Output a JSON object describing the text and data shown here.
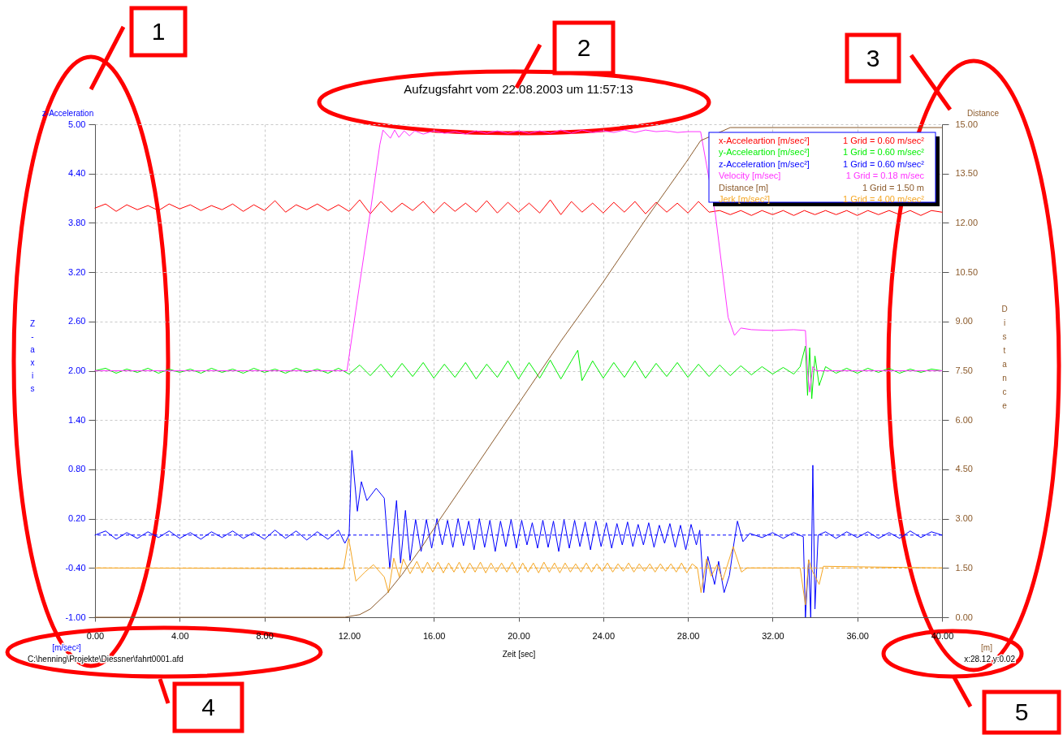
{
  "chart_data": {
    "type": "line",
    "title": "Aufzugsfahrt vom 22.08.2003 um 11:57:13",
    "xlabel": "Zeit   [sec]",
    "ylabel": "z-Acceleration",
    "y2label": "Distance",
    "xlim": [
      0,
      40
    ],
    "xticks": [
      {
        "value": 0,
        "label": "0.00"
      },
      {
        "value": 4,
        "label": "4.00"
      },
      {
        "value": 8,
        "label": "8.00"
      },
      {
        "value": 12,
        "label": "12.00"
      },
      {
        "value": 16,
        "label": "16.00"
      },
      {
        "value": 20,
        "label": "20.00"
      },
      {
        "value": 24,
        "label": "24.00"
      },
      {
        "value": 28,
        "label": "28.00"
      },
      {
        "value": 32,
        "label": "32.00"
      },
      {
        "value": 36,
        "label": "36.00"
      },
      {
        "value": 40,
        "label": "40.00"
      }
    ],
    "ylim": [
      -1,
      5
    ],
    "yticks": [
      {
        "value": -1,
        "label": "-1.00"
      },
      {
        "value": -0.4,
        "label": "-0.40"
      },
      {
        "value": 0.2,
        "label": "0.20"
      },
      {
        "value": 0.8,
        "label": "0.80"
      },
      {
        "value": 1.4,
        "label": "1.40"
      },
      {
        "value": 2,
        "label": "2.00"
      },
      {
        "value": 2.6,
        "label": "2.60"
      },
      {
        "value": 3.2,
        "label": "3.20"
      },
      {
        "value": 3.8,
        "label": "3.80"
      },
      {
        "value": 4.4,
        "label": "4.40"
      },
      {
        "value": 5,
        "label": "5.00"
      }
    ],
    "y2lim": [
      0,
      15
    ],
    "y2ticks": [
      {
        "value": 0,
        "label": "0.00"
      },
      {
        "value": 1.5,
        "label": "1.50"
      },
      {
        "value": 3,
        "label": "3.00"
      },
      {
        "value": 4.5,
        "label": "4.50"
      },
      {
        "value": 6,
        "label": "6.00"
      },
      {
        "value": 7.5,
        "label": "7.50"
      },
      {
        "value": 9,
        "label": "9.00"
      },
      {
        "value": 10.5,
        "label": "10.50"
      },
      {
        "value": 12,
        "label": "12.00"
      },
      {
        "value": 13.5,
        "label": "13.50"
      },
      {
        "value": 15,
        "label": "15.00"
      }
    ],
    "grid": true,
    "legend": "top right",
    "marker": "none",
    "ref_lines": [
      {
        "axis": "y",
        "value": 0,
        "color": "#0000ff",
        "line_style": "dashed"
      },
      {
        "axis": "y",
        "value": -0.4,
        "color": "#f5a623",
        "line_style": "dashed"
      }
    ],
    "annotations": [
      "1 Grid = 0.60 m/sec²",
      "1 Grid = 0.60 m/sec²",
      "1 Grid = 0.60 m/sec²",
      "1 Grid = 0.18 m/sec",
      "1 Grid = 1.50 m",
      "1 Grid = 4.00 m/sec²",
      "[m/sec²]",
      "[m]",
      "C:\\henning\\Projekte\\Diessner\\fahrt0001.afd",
      "x:28.12  y:0.02",
      "Z-axis",
      "Distance",
      "1",
      "2",
      "3",
      "4",
      "5"
    ],
    "series": [
      {
        "name": "x-Acceleartion [m/sec²]",
        "color": "#ff0000",
        "x": [
          0,
          0.5,
          1,
          1.5,
          2,
          2.5,
          3,
          3.5,
          4,
          4.5,
          5,
          5.5,
          6,
          6.5,
          7,
          7.5,
          8,
          8.5,
          9,
          9.5,
          10,
          10.5,
          11,
          11.5,
          12,
          12.5,
          13,
          13.5,
          14,
          14.5,
          15,
          15.5,
          16,
          16.5,
          17,
          17.5,
          18,
          18.5,
          19,
          19.5,
          20,
          20.5,
          21,
          21.5,
          22,
          22.5,
          23,
          23.5,
          24,
          24.5,
          25,
          25.5,
          26,
          26.5,
          27,
          27.5,
          28,
          28.5,
          29,
          29.5,
          30,
          30.5,
          31,
          31.5,
          32,
          32.5,
          33,
          33.5,
          34,
          34.5,
          35,
          35.5,
          36,
          36.5,
          37,
          37.5,
          38,
          38.5,
          39,
          39.5,
          40
        ],
        "values": [
          3.98,
          4.03,
          3.94,
          4.02,
          3.96,
          4.01,
          3.95,
          4.03,
          3.97,
          4.02,
          3.95,
          4.01,
          3.96,
          4.03,
          3.94,
          4.02,
          3.95,
          4.07,
          3.93,
          4.02,
          3.96,
          4.03,
          3.95,
          4.02,
          3.94,
          4.08,
          3.91,
          4.06,
          3.93,
          4.04,
          3.95,
          4.06,
          3.92,
          4.05,
          3.94,
          4.04,
          3.93,
          4.07,
          3.92,
          4.05,
          3.93,
          4.04,
          3.92,
          4.08,
          3.9,
          4.06,
          3.93,
          4.04,
          3.92,
          4.05,
          3.93,
          4.06,
          3.91,
          4.05,
          3.93,
          4.04,
          3.92,
          4.06,
          3.93,
          3.95,
          3.9,
          3.95,
          3.89,
          3.95,
          3.9,
          3.95,
          3.89,
          3.95,
          3.9,
          3.95,
          3.9,
          3.95,
          3.89,
          3.95,
          3.9,
          3.95,
          3.9,
          3.95,
          3.89,
          3.95,
          3.93
        ]
      },
      {
        "name": "y-Acceleartion [m/sec²]",
        "color": "#00ee00",
        "x": [
          0,
          0.5,
          1,
          1.5,
          2,
          2.5,
          3,
          3.5,
          4,
          4.5,
          5,
          5.5,
          6,
          6.5,
          7,
          7.5,
          8,
          8.5,
          9,
          9.5,
          10,
          10.5,
          11,
          11.5,
          12,
          12.5,
          13,
          13.5,
          14,
          14.5,
          15,
          15.5,
          16,
          16.5,
          17,
          17.5,
          18,
          18.5,
          19,
          19.5,
          20,
          20.5,
          21,
          21.5,
          22,
          22.5,
          22.8,
          23,
          23.5,
          24,
          24.5,
          25,
          25.5,
          26,
          26.5,
          27,
          27.5,
          28,
          28.5,
          29,
          29.5,
          30,
          30.5,
          31,
          31.5,
          32,
          32.5,
          33,
          33.3,
          33.55,
          33.65,
          33.75,
          33.85,
          34,
          34.2,
          34.5,
          35,
          35.5,
          36,
          36.5,
          37,
          37.5,
          38,
          38.5,
          39,
          39.5,
          40
        ],
        "values": [
          2,
          2.03,
          1.97,
          2.02,
          1.98,
          2.03,
          1.97,
          2.02,
          1.98,
          2.02,
          1.97,
          2.03,
          1.98,
          2.02,
          1.97,
          2.03,
          1.98,
          2.02,
          1.97,
          2.03,
          1.98,
          2.02,
          1.97,
          2.03,
          1.96,
          2.07,
          1.94,
          2.08,
          1.92,
          2.09,
          1.93,
          2.1,
          1.91,
          2.08,
          1.92,
          2.1,
          1.9,
          2.08,
          1.92,
          2.12,
          1.9,
          2.1,
          1.91,
          2.13,
          1.9,
          2.12,
          2.25,
          1.88,
          2.12,
          1.91,
          2.1,
          1.92,
          2.12,
          1.91,
          2.09,
          1.93,
          2.1,
          1.92,
          2.08,
          1.93,
          2.07,
          1.94,
          2.06,
          1.95,
          2.05,
          1.96,
          2.04,
          1.96,
          2.05,
          2.3,
          1.7,
          2.28,
          1.66,
          2.18,
          1.82,
          2.05,
          1.97,
          2.03,
          1.97,
          2.03,
          1.98,
          2.03,
          1.97,
          2.02,
          1.98,
          2.02,
          2
        ]
      },
      {
        "name": "z-Acceleration [m/sec²]",
        "color": "#0000ff",
        "x": [
          0,
          0.5,
          1,
          1.5,
          2,
          2.5,
          3,
          3.5,
          4,
          4.5,
          5,
          5.5,
          6,
          6.5,
          7,
          7.5,
          8,
          8.5,
          9,
          9.5,
          10,
          10.5,
          11,
          11.5,
          11.8,
          12,
          12.13,
          12.39,
          12.58,
          12.84,
          13.28,
          13.66,
          13.92,
          14.24,
          14.43,
          14.66,
          14.88,
          15.14,
          15.4,
          15.65,
          15.9,
          16.15,
          16.4,
          16.65,
          16.9,
          17.15,
          17.4,
          17.65,
          17.9,
          18.15,
          18.4,
          18.65,
          18.9,
          19.15,
          19.4,
          19.65,
          19.9,
          20.15,
          20.4,
          20.65,
          20.9,
          21.15,
          21.4,
          21.65,
          21.9,
          22.15,
          22.4,
          22.65,
          22.9,
          23.15,
          23.4,
          23.65,
          23.9,
          24.15,
          24.4,
          24.65,
          24.9,
          25.15,
          25.4,
          25.65,
          25.9,
          26.15,
          26.4,
          26.65,
          26.9,
          27.15,
          27.4,
          27.65,
          27.9,
          28.15,
          28.4,
          28.56,
          28.75,
          28.94,
          29.26,
          29.45,
          29.71,
          29.96,
          30.15,
          30.34,
          30.6,
          30.92,
          31.5,
          32,
          32.5,
          33,
          33.45,
          33.55,
          33.7,
          33.8,
          33.9,
          34,
          34.15,
          34.5,
          35,
          35.5,
          36,
          36.5,
          37,
          37.5,
          38,
          38.5,
          39,
          39.5,
          40
        ],
        "values": [
          0,
          0.05,
          -0.05,
          0.03,
          -0.04,
          0.04,
          -0.03,
          0.05,
          -0.04,
          0.03,
          -0.05,
          0.04,
          -0.03,
          0.05,
          -0.04,
          0.03,
          -0.05,
          0.06,
          -0.04,
          0.05,
          -0.06,
          0.04,
          -0.05,
          0.06,
          -0.1,
          0,
          1.03,
          0.29,
          0.65,
          0.42,
          0.57,
          0.45,
          -0.41,
          0.42,
          -0.34,
          0.3,
          -0.31,
          0.19,
          -0.2,
          0.19,
          -0.16,
          0.2,
          -0.12,
          0.18,
          -0.15,
          0.2,
          -0.13,
          0.17,
          -0.18,
          0.2,
          -0.15,
          0.18,
          -0.2,
          0.17,
          -0.14,
          0.19,
          -0.16,
          0.18,
          -0.12,
          0.15,
          -0.16,
          0.18,
          -0.15,
          0.17,
          -0.2,
          0.19,
          -0.16,
          0.18,
          -0.14,
          0.16,
          -0.18,
          0.17,
          -0.14,
          0.15,
          -0.16,
          0.14,
          -0.12,
          0.16,
          -0.14,
          0.13,
          -0.12,
          0.15,
          -0.15,
          0.12,
          -0.1,
          0.14,
          -0.15,
          0.12,
          -0.18,
          0.13,
          -0.12,
          0.06,
          -0.7,
          -0.26,
          -0.6,
          -0.32,
          -0.7,
          -0.49,
          -0.14,
          0.17,
          -0.08,
          0.02,
          -0.03,
          0.03,
          -0.04,
          0.03,
          -0.02,
          -1,
          -0.3,
          -1,
          0.85,
          -0.9,
          0,
          0.04,
          -0.04,
          0.04,
          -0.03,
          0.04,
          -0.04,
          0.03,
          -0.04,
          0.05,
          -0.03,
          0.04,
          0
        ]
      },
      {
        "name": "Velocity [m/sec]",
        "color": "#ff33ff",
        "x": [
          0,
          11.9,
          12.5,
          13,
          13.45,
          13.6,
          13.95,
          14.15,
          14.35,
          14.6,
          14.85,
          15.1,
          15.5,
          16,
          16.5,
          17,
          17.5,
          18,
          18.5,
          19,
          19.5,
          20,
          20.5,
          21,
          21.5,
          22,
          22.5,
          23,
          23.5,
          24,
          24.5,
          25,
          25.5,
          26,
          26.5,
          27,
          27.5,
          28,
          28.6,
          29.3,
          29.9,
          30.2,
          30.5,
          31,
          32,
          33,
          33.55,
          33.65,
          33.75,
          33.9,
          34.05,
          40
        ],
        "values": [
          2,
          2,
          3.06,
          3.93,
          4.75,
          4.93,
          4.83,
          4.93,
          4.84,
          4.92,
          4.86,
          4.92,
          4.88,
          4.92,
          4.89,
          4.91,
          4.88,
          4.92,
          4.89,
          4.92,
          4.89,
          4.92,
          4.89,
          4.92,
          4.89,
          4.93,
          4.89,
          4.93,
          4.9,
          4.92,
          4.9,
          4.93,
          4.9,
          4.93,
          4.91,
          4.92,
          4.9,
          4.91,
          4.91,
          3.9,
          2.65,
          2.43,
          2.52,
          2.5,
          2.49,
          2.5,
          2.49,
          2,
          1.74,
          2.05,
          2,
          2
        ]
      },
      {
        "name": "Distance [m]",
        "color": "#8b5a2b",
        "axis": "y2",
        "x": [
          0,
          11.8,
          12.5,
          13,
          13.8,
          14.5,
          15.5,
          16.35,
          18,
          20,
          22,
          24,
          26,
          27.9,
          28.6,
          30,
          40
        ],
        "values": [
          0,
          0,
          0.08,
          0.25,
          0.74,
          1.3,
          2.2,
          3.04,
          4.6,
          6.5,
          8.4,
          10.2,
          12.1,
          13.83,
          14.5,
          14.9,
          14.9
        ]
      },
      {
        "name": "Jerk [m/sec²]",
        "color": "#f5a623",
        "x": [
          0,
          11.74,
          11.98,
          12.32,
          12.75,
          13.15,
          13.66,
          13.86,
          14.11,
          14.37,
          14.56,
          14.88,
          15.2,
          15.45,
          15.7,
          15.95,
          16.2,
          16.45,
          16.7,
          16.95,
          17.2,
          17.45,
          17.7,
          17.95,
          18.2,
          18.45,
          18.7,
          18.95,
          19.2,
          19.45,
          19.7,
          19.95,
          20.2,
          20.45,
          20.7,
          20.95,
          21.2,
          21.45,
          21.7,
          21.95,
          22.2,
          22.45,
          22.7,
          22.95,
          23.2,
          23.45,
          23.7,
          23.95,
          24.2,
          24.45,
          24.7,
          24.95,
          25.2,
          25.45,
          25.7,
          25.95,
          26.2,
          26.45,
          26.7,
          26.95,
          27.2,
          27.45,
          27.7,
          27.95,
          28.2,
          28.45,
          28.62,
          28.88,
          29.1,
          29.38,
          29.64,
          30.14,
          30.53,
          30.8,
          33.3,
          33.55,
          33.7,
          33.9,
          34.2,
          34.4,
          40
        ],
        "values": [
          -0.4,
          -0.41,
          -0.04,
          -0.56,
          -0.45,
          -0.36,
          -0.51,
          -0.7,
          -0.28,
          -0.51,
          -0.29,
          -0.47,
          -0.32,
          -0.46,
          -0.33,
          -0.45,
          -0.33,
          -0.46,
          -0.34,
          -0.45,
          -0.33,
          -0.46,
          -0.34,
          -0.45,
          -0.33,
          -0.46,
          -0.34,
          -0.45,
          -0.34,
          -0.45,
          -0.33,
          -0.46,
          -0.34,
          -0.45,
          -0.34,
          -0.46,
          -0.33,
          -0.45,
          -0.34,
          -0.46,
          -0.34,
          -0.45,
          -0.35,
          -0.45,
          -0.34,
          -0.45,
          -0.35,
          -0.44,
          -0.34,
          -0.45,
          -0.35,
          -0.44,
          -0.34,
          -0.45,
          -0.35,
          -0.44,
          -0.35,
          -0.45,
          -0.35,
          -0.44,
          -0.35,
          -0.45,
          -0.34,
          -0.46,
          -0.35,
          -0.4,
          -0.7,
          -0.29,
          -0.5,
          -0.36,
          -0.55,
          -0.14,
          -0.45,
          -0.4,
          -0.4,
          -0.85,
          -0.3,
          -0.45,
          -0.6,
          -0.38,
          -0.4
        ]
      }
    ]
  }
}
